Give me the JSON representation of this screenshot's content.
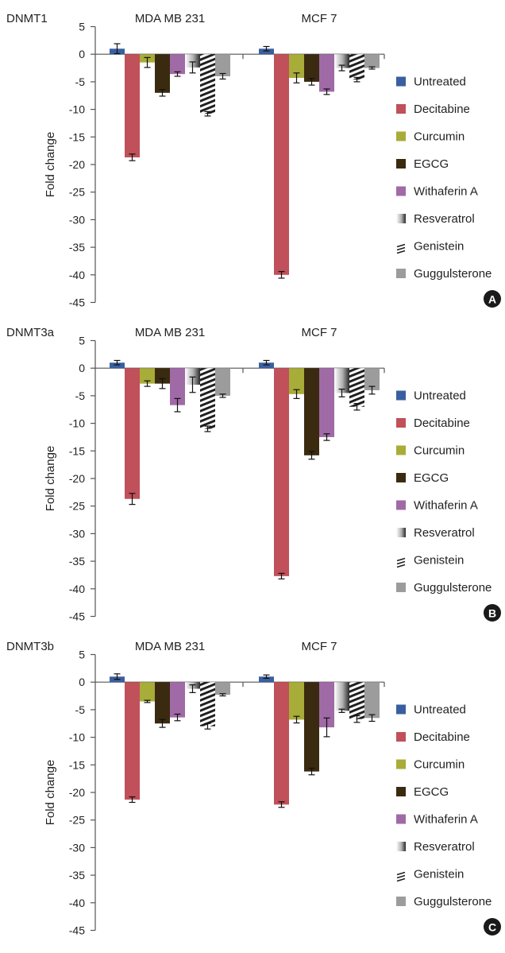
{
  "colors": {
    "Untreated": "#3a5fa0",
    "Decitabine": "#c0505a",
    "Curcumin": "#a8ac38",
    "EGCG": "#3a2a10",
    "Withaferin A": "#a06aa6",
    "Resveratrol": "gradient",
    "Genistein": "hatch",
    "Guggulsterone": "#9c9c9c",
    "axis": "#555555",
    "badge": "#1a1a1a"
  },
  "chart_data": [
    {
      "type": "bar",
      "title": "DNMT1",
      "panel_letter": "A",
      "ylabel": "Fold change",
      "ylim": [
        -45,
        5
      ],
      "yticks": [
        5,
        0,
        -5,
        -10,
        -15,
        -20,
        -25,
        -30,
        -35,
        -40,
        -45
      ],
      "categories": [
        "MDA MB 231",
        "MCF 7"
      ],
      "series": [
        {
          "name": "Untreated",
          "values": [
            1,
            1
          ],
          "errors": [
            0.9,
            0.4
          ]
        },
        {
          "name": "Decitabine",
          "values": [
            -18.7,
            -40
          ],
          "errors": [
            0.6,
            0.6
          ]
        },
        {
          "name": "Curcumin",
          "values": [
            -1.5,
            -4.3
          ],
          "errors": [
            0.9,
            0.9
          ]
        },
        {
          "name": "EGCG",
          "values": [
            -7,
            -5
          ],
          "errors": [
            0.6,
            0.6
          ]
        },
        {
          "name": "Withaferin A",
          "values": [
            -3.6,
            -6.8
          ],
          "errors": [
            0.4,
            0.5
          ]
        },
        {
          "name": "Resveratrol",
          "values": [
            -2.4,
            -2.5
          ],
          "errors": [
            1,
            0.5
          ]
        },
        {
          "name": "Genistein",
          "values": [
            -10.8,
            -4.6
          ],
          "errors": [
            0.4,
            0.4
          ]
        },
        {
          "name": "Guggulsterone",
          "values": [
            -4,
            -2.5
          ],
          "errors": [
            0.5,
            0.2
          ]
        }
      ]
    },
    {
      "type": "bar",
      "title": "DNMT3a",
      "panel_letter": "B",
      "ylabel": "Fold change",
      "ylim": [
        -45,
        5
      ],
      "yticks": [
        5,
        0,
        -5,
        -10,
        -15,
        -20,
        -25,
        -30,
        -35,
        -40,
        -45
      ],
      "categories": [
        "MDA MB 231",
        "MCF 7"
      ],
      "series": [
        {
          "name": "Untreated",
          "values": [
            1,
            1
          ],
          "errors": [
            0.4,
            0.4
          ]
        },
        {
          "name": "Decitabine",
          "values": [
            -23.7,
            -37.7
          ],
          "errors": [
            1,
            0.5
          ]
        },
        {
          "name": "Curcumin",
          "values": [
            -2.8,
            -4.7
          ],
          "errors": [
            0.5,
            0.8
          ]
        },
        {
          "name": "EGCG",
          "values": [
            -2.8,
            -15.8
          ],
          "errors": [
            0.9,
            0.7
          ]
        },
        {
          "name": "Withaferin A",
          "values": [
            -6.7,
            -12.5
          ],
          "errors": [
            1.2,
            0.6
          ]
        },
        {
          "name": "Resveratrol",
          "values": [
            -3,
            -4.5
          ],
          "errors": [
            1.4,
            0.7
          ]
        },
        {
          "name": "Genistein",
          "values": [
            -11,
            -7
          ],
          "errors": [
            0.5,
            0.6
          ]
        },
        {
          "name": "Guggulsterone",
          "values": [
            -5,
            -4
          ],
          "errors": [
            0.3,
            0.7
          ]
        }
      ]
    },
    {
      "type": "bar",
      "title": "DNMT3b",
      "panel_letter": "C",
      "ylabel": "Fold change",
      "ylim": [
        -45,
        5
      ],
      "yticks": [
        5,
        0,
        -5,
        -10,
        -15,
        -20,
        -25,
        -30,
        -35,
        -40,
        -45
      ],
      "categories": [
        "MDA MB 231",
        "MCF 7"
      ],
      "series": [
        {
          "name": "Untreated",
          "values": [
            1,
            1
          ],
          "errors": [
            0.5,
            0.3
          ]
        },
        {
          "name": "Decitabine",
          "values": [
            -21.3,
            -22.2
          ],
          "errors": [
            0.5,
            0.5
          ]
        },
        {
          "name": "Curcumin",
          "values": [
            -3.5,
            -6.8
          ],
          "errors": [
            0.2,
            0.6
          ]
        },
        {
          "name": "EGCG",
          "values": [
            -7.5,
            -16.2
          ],
          "errors": [
            0.7,
            0.6
          ]
        },
        {
          "name": "Withaferin A",
          "values": [
            -6.4,
            -8.2
          ],
          "errors": [
            0.6,
            1.7
          ]
        },
        {
          "name": "Resveratrol",
          "values": [
            -1.2,
            -5.2
          ],
          "errors": [
            0.7,
            0.3
          ]
        },
        {
          "name": "Genistein",
          "values": [
            -8,
            -6.7
          ],
          "errors": [
            0.5,
            0.6
          ]
        },
        {
          "name": "Guggulsterone",
          "values": [
            -2.3,
            -6.5
          ],
          "errors": [
            0.2,
            0.6
          ]
        }
      ]
    }
  ]
}
